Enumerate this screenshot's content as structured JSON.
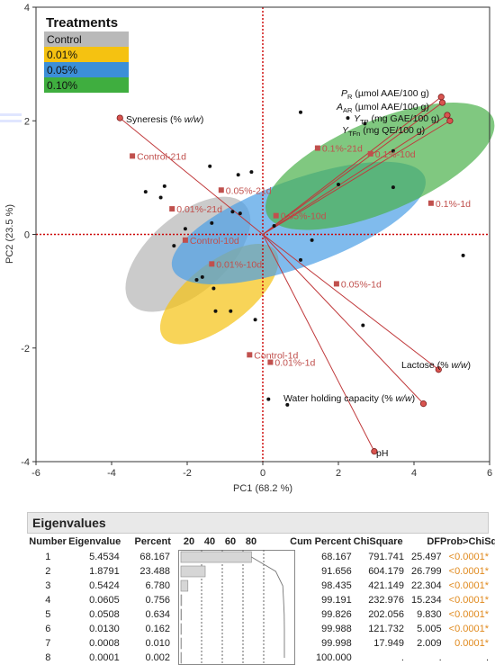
{
  "chart_data": {
    "type": "scatter",
    "subtype": "pca-biplot",
    "xlabel": "PC1  (68.2 %)",
    "ylabel": "PC2  (23.5 %)",
    "xlim": [
      -6,
      6
    ],
    "ylim": [
      -4,
      4
    ],
    "xticks": [
      -6,
      -4,
      -2,
      0,
      2,
      4,
      6
    ],
    "yticks": [
      -4,
      -2,
      0,
      2,
      4
    ],
    "grid": false,
    "reference_lines": {
      "x": 0,
      "y": 0,
      "color": "#cc0000",
      "style": "dotted"
    },
    "legend": {
      "title": "Treatments",
      "placement": "top-left",
      "entries": [
        {
          "name": "Control",
          "color": "#b9b9b9"
        },
        {
          "name": "0.01%",
          "color": "#f5c211"
        },
        {
          "name": "0.05%",
          "color": "#3c8fd8"
        },
        {
          "name": "0.10%",
          "color": "#3fae3f"
        }
      ]
    },
    "ellipses": [
      {
        "group": "Control",
        "color": "#b5b5b5",
        "cx": -1.98,
        "cy": -0.35,
        "rx": 2.0,
        "ry": 0.68,
        "angle": 41
      },
      {
        "group": "0.01%",
        "color": "#f5c211",
        "cx": -1.15,
        "cy": -1.05,
        "rx": 1.88,
        "ry": 0.55,
        "angle": 38
      },
      {
        "group": "0.05%",
        "color": "#4a9ee6",
        "cx": 0.95,
        "cy": 0.2,
        "rx": 3.55,
        "ry": 0.76,
        "angle": 20
      },
      {
        "group": "0.10%",
        "color": "#4ab14a",
        "cx": 3.1,
        "cy": 1.2,
        "rx": 3.25,
        "ry": 0.8,
        "angle": 23
      }
    ],
    "sample_points": [
      {
        "label": "Control-21d",
        "x": -3.45,
        "y": 1.38
      },
      {
        "label": "Control-10d",
        "x": -2.05,
        "y": -0.1
      },
      {
        "label": "Control-1d",
        "x": -0.35,
        "y": -2.12
      },
      {
        "label": "0.01%-21d",
        "x": -2.4,
        "y": 0.45
      },
      {
        "label": "0.01%-10d",
        "x": -1.35,
        "y": -0.52
      },
      {
        "label": "0.01%-1d",
        "x": 0.2,
        "y": -2.25
      },
      {
        "label": "0.05%-21d",
        "x": -1.1,
        "y": 0.78
      },
      {
        "label": "0.05%-10d",
        "x": 0.35,
        "y": 0.33
      },
      {
        "label": "0.05%-1d",
        "x": 1.95,
        "y": -0.87
      },
      {
        "label": "0.1%-21d",
        "x": 1.45,
        "y": 1.52
      },
      {
        "label": "0.1%-10d",
        "x": 2.85,
        "y": 1.42
      },
      {
        "label": "0.1%-1d",
        "x": 4.45,
        "y": 0.55
      }
    ],
    "observations": [
      [
        -3.1,
        0.75
      ],
      [
        -2.6,
        0.85
      ],
      [
        -2.7,
        0.65
      ],
      [
        -2.35,
        -0.2
      ],
      [
        -1.6,
        -0.75
      ],
      [
        -1.3,
        -0.95
      ],
      [
        -0.85,
        -1.35
      ],
      [
        -0.2,
        -1.5
      ],
      [
        -2.05,
        0.1
      ],
      [
        -1.35,
        0.2
      ],
      [
        -1.75,
        -0.8
      ],
      [
        -1.25,
        -1.35
      ],
      [
        -0.65,
        1.05
      ],
      [
        -0.8,
        0.4
      ],
      [
        -1.4,
        1.2
      ],
      [
        -0.3,
        1.1
      ],
      [
        -0.6,
        0.37
      ],
      [
        0.3,
        0.15
      ],
      [
        1.3,
        -0.1
      ],
      [
        1.0,
        -0.45
      ],
      [
        1.0,
        2.15
      ],
      [
        2.25,
        2.05
      ],
      [
        2.7,
        1.95
      ],
      [
        2.0,
        0.88
      ],
      [
        3.45,
        1.47
      ],
      [
        3.45,
        0.83
      ],
      [
        5.3,
        -0.37
      ],
      [
        2.65,
        -1.6
      ],
      [
        0.15,
        -2.9
      ],
      [
        0.65,
        -3.0
      ]
    ],
    "loadings": [
      {
        "name": "Syneresis (% w/w)",
        "x": -3.78,
        "y": 2.05
      },
      {
        "name": "P_R (µmol AAE/100 g)",
        "x": 4.72,
        "y": 2.42
      },
      {
        "name": "A_AR (µmol AAE/100 g)",
        "x": 4.75,
        "y": 2.32
      },
      {
        "name": "Y_TP (mg GAE/100 g)",
        "x": 4.88,
        "y": 2.1
      },
      {
        "name": "Y_TFn (mg QE/100 g)",
        "x": 4.95,
        "y": 2.0
      },
      {
        "name": "Lactose (% w/w)",
        "x": 4.65,
        "y": -2.38
      },
      {
        "name": "Water holding capacity (% w/w)",
        "x": 4.25,
        "y": -2.98
      },
      {
        "name": "pH",
        "x": 2.95,
        "y": -3.82
      }
    ]
  },
  "var_labels": [
    {
      "main": "P",
      "sub": "R",
      "rest": " (µmol AAE/100 g)"
    },
    {
      "main": "A",
      "sub": "AR",
      "rest": " (µmol AAE/100 g)"
    },
    {
      "main": "Y",
      "sub": "TP",
      "rest": " (mg GAE/100 g)"
    },
    {
      "main": "Y",
      "sub": "TFn",
      "rest": " (mg QE/100 g)"
    }
  ],
  "var_label_syneresis": {
    "pre": "Syneresis (% ",
    "em": "w/w",
    "post": ")"
  },
  "var_label_lactose": {
    "pre": "Lactose (% ",
    "em": "w/w",
    "post": ")"
  },
  "var_label_whc": {
    "pre": "Water holding capacity (% ",
    "em": "w/w",
    "post": ")"
  },
  "var_label_ph": "pH",
  "eigenvalues": {
    "title": "Eigenvalues",
    "headers": {
      "number": "Number",
      "eigenvalue": "Eigenvalue",
      "percent": "Percent",
      "bar_ticks": [
        "20",
        "40",
        "60",
        "80"
      ],
      "cum": "Cum Percent",
      "chisq": "ChiSquare",
      "df": "DF",
      "p": "Prob>ChiSq"
    },
    "rows": [
      {
        "number": "1",
        "eigenvalue": "5.4534",
        "percent": "68.167",
        "pct": 68.167,
        "cum": "68.167",
        "chisq": "791.741",
        "df": "25.497",
        "p": "<0.0001*"
      },
      {
        "number": "2",
        "eigenvalue": "1.8791",
        "percent": "23.488",
        "pct": 23.488,
        "cum": "91.656",
        "chisq": "604.179",
        "df": "26.799",
        "p": "<0.0001*"
      },
      {
        "number": "3",
        "eigenvalue": "0.5424",
        "percent": "6.780",
        "pct": 6.78,
        "cum": "98.435",
        "chisq": "421.149",
        "df": "22.304",
        "p": "<0.0001*"
      },
      {
        "number": "4",
        "eigenvalue": "0.0605",
        "percent": "0.756",
        "pct": 0.756,
        "cum": "99.191",
        "chisq": "232.976",
        "df": "15.234",
        "p": "<0.0001*"
      },
      {
        "number": "5",
        "eigenvalue": "0.0508",
        "percent": "0.634",
        "pct": 0.634,
        "cum": "99.826",
        "chisq": "202.056",
        "df": "9.830",
        "p": "<0.0001*"
      },
      {
        "number": "6",
        "eigenvalue": "0.0130",
        "percent": "0.162",
        "pct": 0.162,
        "cum": "99.988",
        "chisq": "121.732",
        "df": "5.005",
        "p": "<0.0001*"
      },
      {
        "number": "7",
        "eigenvalue": "0.0008",
        "percent": "0.010",
        "pct": 0.01,
        "cum": "99.998",
        "chisq": "17.949",
        "df": "2.009",
        "p": "0.0001*"
      },
      {
        "number": "8",
        "eigenvalue": "0.0001",
        "percent": "0.002",
        "pct": 0.002,
        "cum": "100.000",
        "chisq": ".",
        "df": ".",
        "p": "."
      }
    ]
  },
  "colors": {
    "loading": "#c0393b",
    "ref": "#cc0000",
    "sample": "#c0504d",
    "dot": "#111111",
    "sig": "#e08a1e"
  }
}
